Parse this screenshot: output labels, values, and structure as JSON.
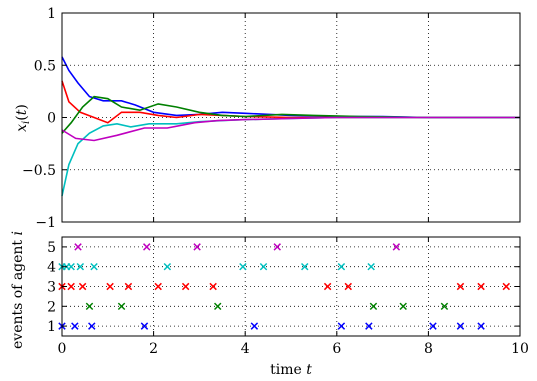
{
  "chart_data": [
    {
      "type": "line",
      "ylabel": "x_i(t)",
      "xlim": [
        0,
        10
      ],
      "ylim": [
        -1,
        1
      ],
      "x_ticks": [
        0,
        2,
        4,
        6,
        8,
        10
      ],
      "y_ticks": [
        1,
        0.5,
        0,
        -0.5,
        -1
      ],
      "y_tick_labels": [
        "1",
        "0.5",
        "0",
        "−0.5",
        "−1"
      ],
      "grid": true,
      "series": [
        {
          "color": "#0000ff",
          "points": [
            [
              0,
              0.58
            ],
            [
              0.15,
              0.45
            ],
            [
              0.35,
              0.33
            ],
            [
              0.6,
              0.2
            ],
            [
              0.9,
              0.16
            ],
            [
              1.3,
              0.16
            ],
            [
              1.6,
              0.12
            ],
            [
              2,
              0.05
            ],
            [
              2.5,
              0.02
            ],
            [
              3,
              0.03
            ],
            [
              3.5,
              0.05
            ],
            [
              4,
              0.04
            ],
            [
              5,
              0.02
            ],
            [
              6,
              0.01
            ],
            [
              7,
              0.01
            ],
            [
              8,
              0.0
            ],
            [
              10,
              0.0
            ]
          ]
        },
        {
          "color": "#ff0000",
          "points": [
            [
              0,
              0.35
            ],
            [
              0.15,
              0.15
            ],
            [
              0.4,
              0.05
            ],
            [
              0.7,
              0.0
            ],
            [
              1.0,
              -0.05
            ],
            [
              1.3,
              0.05
            ],
            [
              1.7,
              0.05
            ],
            [
              2.1,
              0.02
            ],
            [
              2.5,
              0.0
            ],
            [
              3.0,
              0.03
            ],
            [
              3.5,
              0.02
            ],
            [
              4,
              0.01
            ],
            [
              5,
              0.0
            ],
            [
              6,
              0.0
            ],
            [
              8,
              0.0
            ],
            [
              10,
              0.0
            ]
          ]
        },
        {
          "color": "#008000",
          "points": [
            [
              0,
              -0.15
            ],
            [
              0.2,
              -0.05
            ],
            [
              0.45,
              0.1
            ],
            [
              0.7,
              0.2
            ],
            [
              1.0,
              0.18
            ],
            [
              1.3,
              0.1
            ],
            [
              1.7,
              0.07
            ],
            [
              2.1,
              0.13
            ],
            [
              2.5,
              0.1
            ],
            [
              3.0,
              0.05
            ],
            [
              3.5,
              0.02
            ],
            [
              4,
              0.01
            ],
            [
              4.8,
              0.03
            ],
            [
              5.5,
              0.02
            ],
            [
              6.5,
              0.01
            ],
            [
              8,
              0.0
            ],
            [
              10,
              0.0
            ]
          ]
        },
        {
          "color": "#00bfbf",
          "points": [
            [
              0,
              -0.75
            ],
            [
              0.15,
              -0.45
            ],
            [
              0.35,
              -0.25
            ],
            [
              0.6,
              -0.15
            ],
            [
              0.9,
              -0.08
            ],
            [
              1.2,
              -0.06
            ],
            [
              1.5,
              -0.09
            ],
            [
              1.9,
              -0.06
            ],
            [
              2.5,
              -0.06
            ],
            [
              3.0,
              -0.04
            ],
            [
              3.5,
              -0.03
            ],
            [
              4,
              -0.02
            ],
            [
              5,
              -0.01
            ],
            [
              6,
              0.0
            ],
            [
              8,
              0.0
            ],
            [
              10,
              0.0
            ]
          ]
        },
        {
          "color": "#bf00bf",
          "points": [
            [
              0,
              -0.12
            ],
            [
              0.3,
              -0.2
            ],
            [
              0.7,
              -0.22
            ],
            [
              1.2,
              -0.17
            ],
            [
              1.8,
              -0.1
            ],
            [
              2.3,
              -0.1
            ],
            [
              2.9,
              -0.05
            ],
            [
              3.4,
              -0.03
            ],
            [
              4,
              -0.02
            ],
            [
              5,
              -0.01
            ],
            [
              6,
              0.0
            ],
            [
              8,
              0.0
            ],
            [
              10,
              0.0
            ]
          ]
        }
      ]
    },
    {
      "type": "scatter",
      "xlabel": "time t",
      "ylabel": "events of agent i",
      "xlim": [
        0,
        10
      ],
      "ylim": [
        0.5,
        5.5
      ],
      "x_ticks": [
        0,
        2,
        4,
        6,
        8,
        10
      ],
      "y_ticks": [
        1,
        2,
        3,
        4,
        5
      ],
      "grid": true,
      "marker": "x",
      "series": [
        {
          "agent": 1,
          "color": "#0000ff",
          "x": [
            0,
            0.28,
            0.65,
            1.8,
            4.2,
            6.1,
            6.7,
            8.1,
            8.7,
            9.15
          ]
        },
        {
          "agent": 2,
          "color": "#008000",
          "x": [
            0.6,
            1.3,
            3.4,
            6.8,
            7.45,
            8.35
          ]
        },
        {
          "agent": 3,
          "color": "#ff0000",
          "x": [
            0,
            0.2,
            0.45,
            1.05,
            1.45,
            2.1,
            2.7,
            3.3,
            5.8,
            6.25,
            8.7,
            9.15,
            9.7
          ]
        },
        {
          "agent": 4,
          "color": "#00bfbf",
          "x": [
            0,
            0.1,
            0.2,
            0.4,
            0.7,
            2.3,
            3.95,
            4.4,
            5.3,
            6.1,
            6.75
          ]
        },
        {
          "agent": 5,
          "color": "#bf00bf",
          "x": [
            0.35,
            1.85,
            2.95,
            4.7,
            7.3
          ]
        }
      ]
    }
  ]
}
